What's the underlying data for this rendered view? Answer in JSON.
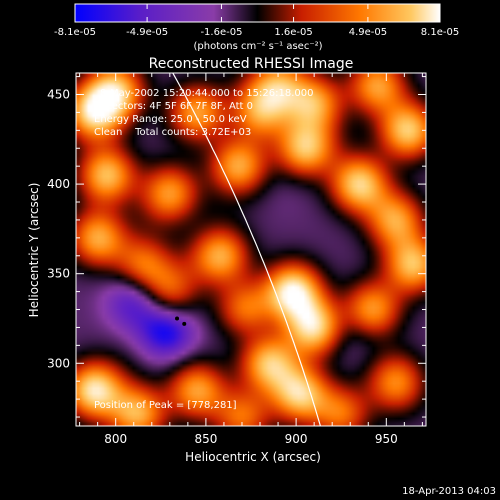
{
  "chart_data": {
    "type": "heatmap",
    "title": "Reconstructed RHESSI Image",
    "xlabel": "Heliocentric X (arcsec)",
    "ylabel": "Heliocentric Y (arcsec)",
    "xlim": [
      778,
      972
    ],
    "ylim": [
      265,
      462
    ],
    "xticks": [
      800,
      850,
      900,
      950
    ],
    "yticks": [
      300,
      350,
      400,
      450
    ],
    "colorbar": {
      "label": "(photons cm⁻² s⁻¹ asec⁻²)",
      "tick_labels": [
        "-8.1e-05",
        "-4.9e-05",
        "-1.6e-05",
        "1.6e-05",
        "4.9e-05",
        "8.1e-05"
      ],
      "tick_values": [
        -8.1e-05,
        -4.9e-05,
        -1.6e-05,
        1.6e-05,
        4.9e-05,
        8.1e-05
      ],
      "range": [
        -8.1e-05,
        8.1e-05
      ],
      "colors": [
        "#0000ff",
        "#5a1ec8",
        "#8a3ca8",
        "#000000",
        "#c81e00",
        "#ff7800",
        "#ffc860",
        "#ffffff"
      ]
    },
    "info": {
      "time": "8-May-2002 15:20:44.000 to 15:26:18.000",
      "detectors": "Detectors: 4F 5F 6F 7F 8F, Att 0",
      "energy": "Energy Range: 25.0 - 50.0 keV",
      "clean": "Clean    Total counts: 3.72E+03"
    },
    "peak": {
      "label": "Position of Peak = [778,281]",
      "x": 778,
      "y": 281
    },
    "blobs": [
      {
        "x": 828,
        "y": 318,
        "v": -7.8e-05
      },
      {
        "x": 810,
        "y": 335,
        "v": -6.5e-05
      },
      {
        "x": 875,
        "y": 322,
        "v": -3.5e-05
      },
      {
        "x": 895,
        "y": 398,
        "v": -3e-05
      },
      {
        "x": 860,
        "y": 385,
        "v": -2.2e-05
      },
      {
        "x": 820,
        "y": 380,
        "v": -2e-05
      },
      {
        "x": 930,
        "y": 318,
        "v": -4e-05
      },
      {
        "x": 905,
        "y": 350,
        "v": -2.5e-05
      },
      {
        "x": 945,
        "y": 365,
        "v": -2.5e-05
      },
      {
        "x": 805,
        "y": 300,
        "v": -2e-05
      },
      {
        "x": 960,
        "y": 280,
        "v": -2e-05
      },
      {
        "x": 840,
        "y": 355,
        "v": -2e-05
      },
      {
        "x": 870,
        "y": 455,
        "v": -2e-05
      },
      {
        "x": 920,
        "y": 425,
        "v": -2e-05
      },
      {
        "x": 788,
        "y": 440,
        "v": 6.5e-05
      },
      {
        "x": 800,
        "y": 452,
        "v": 5.5e-05
      },
      {
        "x": 795,
        "y": 405,
        "v": 5.5e-05
      },
      {
        "x": 790,
        "y": 370,
        "v": 4.8e-05
      },
      {
        "x": 788,
        "y": 285,
        "v": 7e-05
      },
      {
        "x": 812,
        "y": 272,
        "v": 5e-05
      },
      {
        "x": 845,
        "y": 285,
        "v": 4.5e-05
      },
      {
        "x": 845,
        "y": 440,
        "v": 4.5e-05
      },
      {
        "x": 868,
        "y": 410,
        "v": 4.8e-05
      },
      {
        "x": 880,
        "y": 440,
        "v": 3.8e-05
      },
      {
        "x": 890,
        "y": 455,
        "v": 4e-05
      },
      {
        "x": 905,
        "y": 420,
        "v": 5.5e-05
      },
      {
        "x": 910,
        "y": 445,
        "v": 4.5e-05
      },
      {
        "x": 945,
        "y": 455,
        "v": 4.5e-05
      },
      {
        "x": 962,
        "y": 430,
        "v": 6e-05
      },
      {
        "x": 935,
        "y": 400,
        "v": 6.2e-05
      },
      {
        "x": 955,
        "y": 380,
        "v": 4.5e-05
      },
      {
        "x": 965,
        "y": 355,
        "v": 5.5e-05
      },
      {
        "x": 942,
        "y": 330,
        "v": 4.5e-05
      },
      {
        "x": 898,
        "y": 340,
        "v": 7.5e-05
      },
      {
        "x": 910,
        "y": 320,
        "v": 6.5e-05
      },
      {
        "x": 885,
        "y": 300,
        "v": 5.5e-05
      },
      {
        "x": 902,
        "y": 283,
        "v": 6e-05
      },
      {
        "x": 858,
        "y": 360,
        "v": 4.8e-05
      },
      {
        "x": 830,
        "y": 395,
        "v": 4.2e-05
      },
      {
        "x": 815,
        "y": 355,
        "v": 3e-05
      },
      {
        "x": 872,
        "y": 330,
        "v": 3.5e-05
      },
      {
        "x": 955,
        "y": 290,
        "v": 3.5e-05
      },
      {
        "x": 925,
        "y": 272,
        "v": 3e-05
      },
      {
        "x": 870,
        "y": 270,
        "v": 3e-05
      },
      {
        "x": 830,
        "y": 340,
        "v": 2.5e-05
      }
    ]
  },
  "footer": {
    "date": "18-Apr-2013 04:03"
  }
}
